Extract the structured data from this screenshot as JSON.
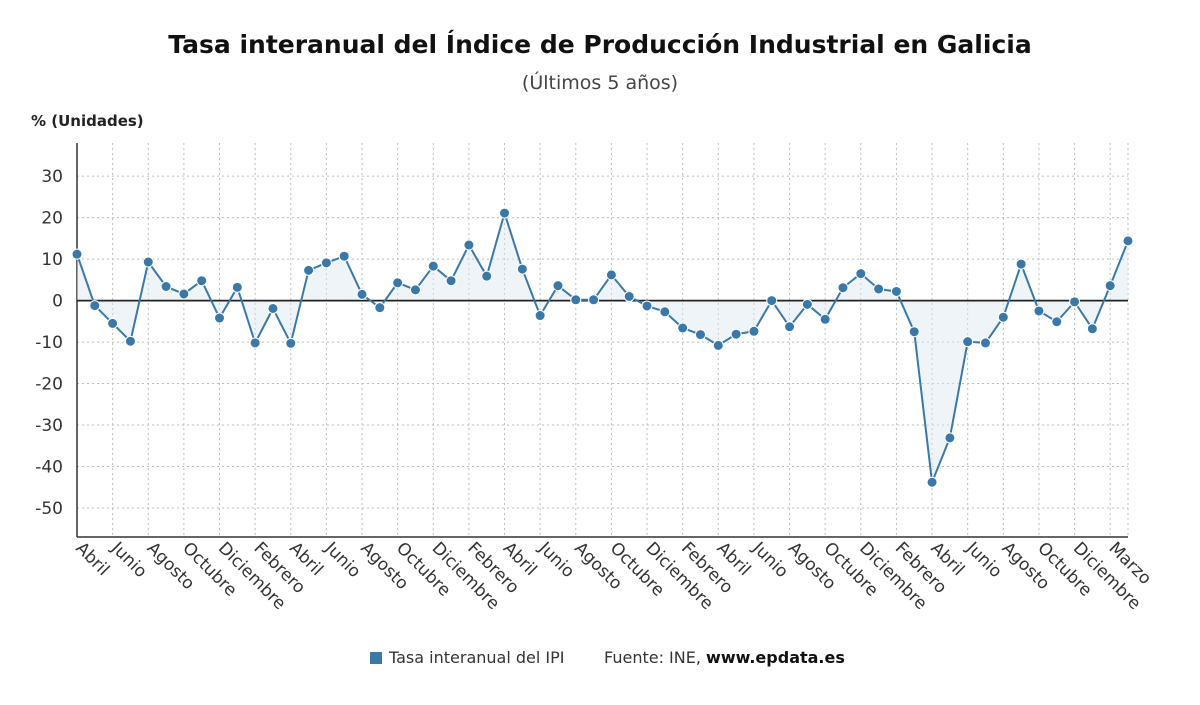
{
  "title": "Tasa interanual del Índice de Producción Industrial en Galicia",
  "subtitle": "(Últimos 5 años)",
  "y_unit": "% (Unidades)",
  "legend": {
    "label": "Tasa interanual del IPI",
    "color": "#3a78a8"
  },
  "source": {
    "prefix": "Fuente: INE,",
    "site": "www.epdata.es"
  },
  "chart_data": {
    "type": "line",
    "ylim": [
      -57,
      38
    ],
    "yticks": [
      30,
      20,
      10,
      0,
      -10,
      -20,
      -30,
      -40,
      -50
    ],
    "grid": true,
    "x_tick_labels": [
      "Abril",
      "Junio",
      "Agosto",
      "Octubre",
      "Diciembre",
      "Febrero",
      "Abril",
      "Junio",
      "Agosto",
      "Octubre",
      "Diciembre",
      "Febrero",
      "Abril",
      "Junio",
      "Agosto",
      "Octubre",
      "Diciembre",
      "Febrero",
      "Abril",
      "Junio",
      "Agosto",
      "Octubre",
      "Diciembre",
      "Febrero",
      "Abril",
      "Junio",
      "Agosto",
      "Octubre",
      "Diciembre",
      "Marzo"
    ],
    "series": [
      {
        "name": "Tasa interanual del IPI",
        "color": "#3a78a8",
        "values": [
          11.2,
          -1.2,
          -5.5,
          -9.8,
          9.3,
          3.4,
          1.6,
          4.8,
          -4.2,
          3.2,
          -10.2,
          -1.9,
          -10.3,
          7.3,
          9.1,
          10.7,
          1.5,
          -1.7,
          4.3,
          2.6,
          8.3,
          4.8,
          13.4,
          5.9,
          21.1,
          7.6,
          -3.6,
          3.6,
          0.2,
          0.2,
          6.2,
          1.0,
          -1.3,
          -2.7,
          -6.6,
          -8.2,
          -10.8,
          -8.1,
          -7.4,
          0.0,
          -6.3,
          -0.9,
          -4.5,
          3.1,
          6.5,
          2.8,
          2.2,
          -7.5,
          -43.8,
          -33.1,
          -9.9,
          -10.2,
          -4.0,
          8.8,
          -2.5,
          -5.1,
          -0.3,
          -6.8,
          3.6,
          14.4
        ]
      }
    ]
  }
}
